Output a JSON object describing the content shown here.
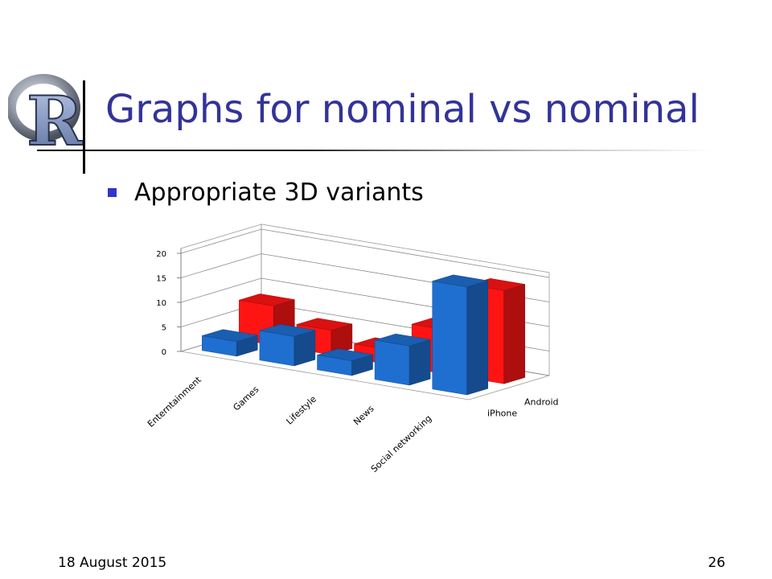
{
  "slide": {
    "title": "Graphs for nominal vs nominal",
    "bullet": "Appropriate 3D variants",
    "footer_date": "18 August 2015",
    "page_number": "26",
    "logo_letter": "R"
  },
  "colors": {
    "title": "#333399",
    "bullet": "#3333cc",
    "iphone": "#1f6fd0",
    "android": "#ff1414"
  },
  "chart_data": {
    "type": "bar",
    "variant": "3d-grouped",
    "categories": [
      "Enterntainment",
      "Games",
      "Lifestyle",
      "News",
      "Social networking"
    ],
    "series": [
      {
        "name": "iPhone",
        "values": [
          3,
          6,
          3,
          8,
          22
        ]
      },
      {
        "name": "Android",
        "values": [
          8,
          5,
          3,
          9,
          19
        ]
      }
    ],
    "yticks": [
      0,
      5,
      10,
      15,
      20
    ],
    "ylim": [
      0,
      20
    ],
    "title": "",
    "xlabel": "",
    "ylabel": "",
    "grid": true,
    "legend": "depth-axis"
  }
}
